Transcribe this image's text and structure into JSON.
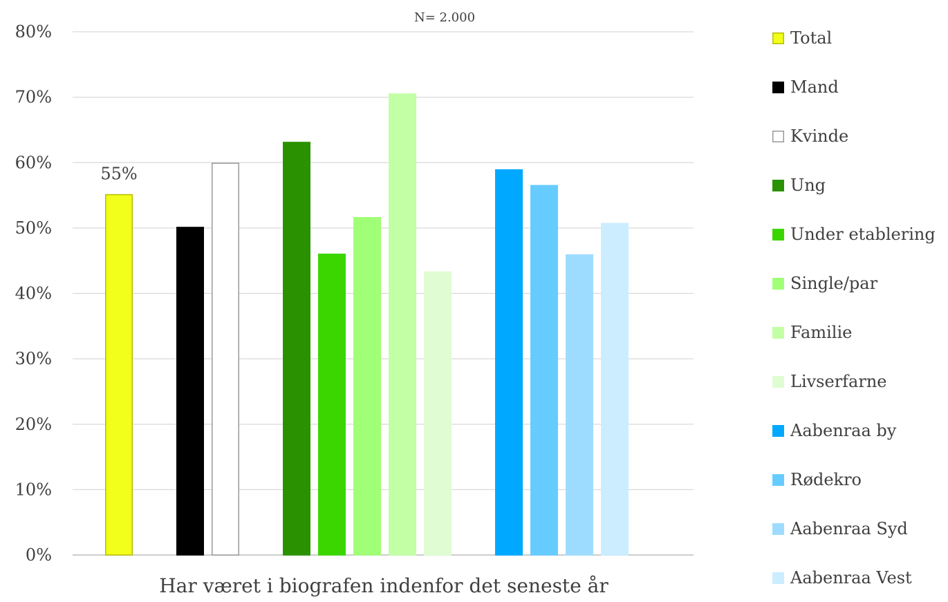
{
  "chart_data": {
    "type": "bar",
    "title": "",
    "subtitle": "N= 2.000",
    "xlabel": "Har været i biografen indenfor det seneste år",
    "ylabel": "",
    "ylim": [
      0,
      80
    ],
    "yticks": [
      "0%",
      "10%",
      "20%",
      "30%",
      "40%",
      "50%",
      "60%",
      "70%",
      "80%"
    ],
    "grid": true,
    "legend_position": "right",
    "groups": [
      [
        "Total"
      ],
      [
        "Mand",
        "Kvinde"
      ],
      [
        "Ung",
        "Under etablering",
        "Single/par",
        "Familie",
        "Livserfarne"
      ],
      [
        "Aabenraa by",
        "Rødekro",
        "Aabenraa Syd",
        "Aabenraa Vest"
      ]
    ],
    "series": [
      {
        "name": "Total",
        "value": 55.1,
        "color": "#F2FF1A",
        "stroke": "#B8BD00",
        "data_label": "55%"
      },
      {
        "name": "Mand",
        "value": 50.1,
        "color": "#000000",
        "stroke": "#000000"
      },
      {
        "name": "Kvinde",
        "value": 59.9,
        "color": "#FFFFFF",
        "stroke": "#9A9A9A"
      },
      {
        "name": "Ung",
        "value": 63.1,
        "color": "#2A9200",
        "stroke": "#2A9200"
      },
      {
        "name": "Under etablering",
        "value": 46.0,
        "color": "#3BD600",
        "stroke": "#3BD600"
      },
      {
        "name": "Single/par",
        "value": 51.6,
        "color": "#A1FF77",
        "stroke": "#A1FF77"
      },
      {
        "name": "Familie",
        "value": 70.5,
        "color": "#C2FFA5",
        "stroke": "#C2FFA5"
      },
      {
        "name": "Livserfarne",
        "value": 43.3,
        "color": "#DFFCD3",
        "stroke": "#DFFCD3"
      },
      {
        "name": "Aabenraa by",
        "value": 58.9,
        "color": "#00A8FF",
        "stroke": "#00A8FF"
      },
      {
        "name": "Rødekro",
        "value": 56.5,
        "color": "#66CCFF",
        "stroke": "#66CCFF"
      },
      {
        "name": "Aabenraa Syd",
        "value": 45.9,
        "color": "#9EDCFF",
        "stroke": "#9EDCFF"
      },
      {
        "name": "Aabenraa Vest",
        "value": 50.7,
        "color": "#CBEDFF",
        "stroke": "#CBEDFF"
      }
    ]
  }
}
